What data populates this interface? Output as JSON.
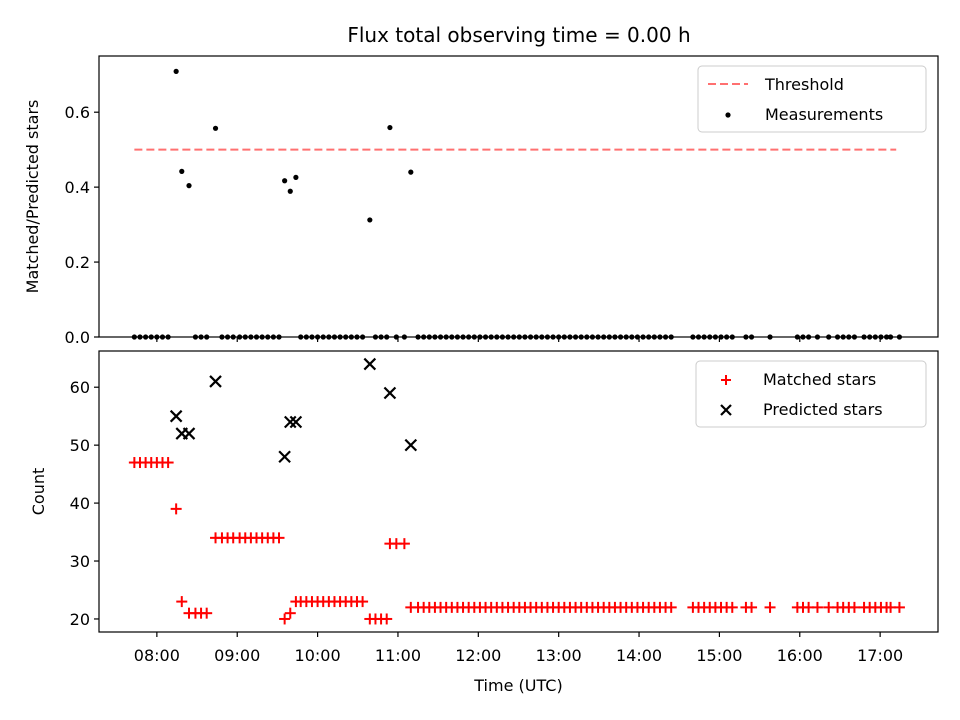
{
  "chart_data": [
    {
      "type": "scatter",
      "panel": "top",
      "title": "Flux total observing time = 0.00 h",
      "xlabel": "",
      "ylabel": "Matched/Predicted stars",
      "xlim": [
        7.28,
        17.72
      ],
      "ylim": [
        0.0,
        0.75
      ],
      "yticks": [
        0.0,
        0.2,
        0.4,
        0.6
      ],
      "ytick_labels": [
        "0.0",
        "0.2",
        "0.4",
        "0.6"
      ],
      "legend_position": "top-right",
      "threshold": {
        "name": "Threshold",
        "value": 0.5,
        "x_start": 7.72,
        "x_end": 17.2,
        "color": "#ff7070"
      },
      "measurements": {
        "name": "Measurements",
        "color": "#000000",
        "x": [
          7.72,
          7.79,
          7.86,
          7.93,
          8.0,
          8.07,
          8.14,
          8.24,
          8.31,
          8.4,
          8.48,
          8.55,
          8.62,
          8.73,
          8.81,
          8.88,
          8.95,
          9.03,
          9.1,
          9.17,
          9.24,
          9.31,
          9.38,
          9.45,
          9.52,
          9.59,
          9.66,
          9.73,
          9.79,
          9.86,
          9.93,
          10.0,
          10.07,
          10.14,
          10.21,
          10.28,
          10.35,
          10.42,
          10.49,
          10.56,
          10.65,
          10.72,
          10.79,
          10.86,
          10.9,
          10.98,
          11.08,
          11.16,
          11.25,
          11.32,
          11.39,
          11.46,
          11.53,
          11.6,
          11.67,
          11.74,
          11.81,
          11.88,
          11.95,
          12.02,
          12.09,
          12.16,
          12.23,
          12.3,
          12.37,
          12.44,
          12.51,
          12.58,
          12.65,
          12.72,
          12.79,
          12.86,
          12.93,
          13.0,
          13.07,
          13.14,
          13.21,
          13.28,
          13.35,
          13.42,
          13.49,
          13.56,
          13.63,
          13.7,
          13.77,
          13.84,
          13.91,
          13.98,
          14.05,
          14.12,
          14.19,
          14.26,
          14.33,
          14.4,
          14.67,
          14.74,
          14.81,
          14.88,
          14.95,
          15.02,
          15.09,
          15.16,
          15.33,
          15.4,
          15.63,
          15.97,
          16.04,
          16.11,
          16.22,
          16.36,
          16.47,
          16.54,
          16.61,
          16.68,
          16.8,
          16.87,
          16.94,
          17.01,
          17.08,
          17.13,
          17.24
        ],
        "y": [
          0,
          0,
          0,
          0,
          0,
          0,
          0,
          0.709,
          0.442,
          0.404,
          0,
          0,
          0,
          0.557,
          0,
          0,
          0,
          0,
          0,
          0,
          0,
          0,
          0,
          0,
          0,
          0.417,
          0.389,
          0.426,
          0,
          0,
          0,
          0,
          0,
          0,
          0,
          0,
          0,
          0,
          0,
          0,
          0.3125,
          0,
          0,
          0,
          0.559,
          0,
          0,
          0.44,
          0,
          0,
          0,
          0,
          0,
          0,
          0,
          0,
          0,
          0,
          0,
          0,
          0,
          0,
          0,
          0,
          0,
          0,
          0,
          0,
          0,
          0,
          0,
          0,
          0,
          0,
          0,
          0,
          0,
          0,
          0,
          0,
          0,
          0,
          0,
          0,
          0,
          0,
          0,
          0,
          0,
          0,
          0,
          0,
          0,
          0,
          0,
          0,
          0,
          0,
          0,
          0,
          0,
          0,
          0,
          0,
          0,
          0,
          0,
          0,
          0,
          0,
          0,
          0,
          0,
          0,
          0,
          0,
          0,
          0,
          0,
          0,
          0
        ]
      },
      "legend": [
        "Threshold",
        "Measurements"
      ]
    },
    {
      "type": "scatter",
      "panel": "bottom",
      "title": "",
      "xlabel": "Time (UTC)",
      "ylabel": "Count",
      "xlim": [
        7.28,
        17.72
      ],
      "ylim": [
        17.75,
        66.25
      ],
      "xticks": [
        8,
        9,
        10,
        11,
        12,
        13,
        14,
        15,
        16,
        17
      ],
      "xtick_labels": [
        "08:00",
        "09:00",
        "10:00",
        "11:00",
        "12:00",
        "13:00",
        "14:00",
        "15:00",
        "16:00",
        "17:00"
      ],
      "yticks": [
        20,
        30,
        40,
        50,
        60
      ],
      "ytick_labels": [
        "20",
        "30",
        "40",
        "50",
        "60"
      ],
      "legend_position": "top-right",
      "series": [
        {
          "name": "Matched stars",
          "marker": "plus",
          "color": "#ff0000",
          "points": [
            [
              7.72,
              47
            ],
            [
              7.79,
              47
            ],
            [
              7.86,
              47
            ],
            [
              7.93,
              47
            ],
            [
              8.0,
              47
            ],
            [
              8.07,
              47
            ],
            [
              8.14,
              47
            ],
            [
              8.24,
              39
            ],
            [
              8.31,
              23
            ],
            [
              8.4,
              21
            ],
            [
              8.48,
              21
            ],
            [
              8.55,
              21
            ],
            [
              8.62,
              21
            ],
            [
              8.73,
              34
            ],
            [
              8.81,
              34
            ],
            [
              8.88,
              34
            ],
            [
              8.95,
              34
            ],
            [
              9.03,
              34
            ],
            [
              9.1,
              34
            ],
            [
              9.17,
              34
            ],
            [
              9.24,
              34
            ],
            [
              9.31,
              34
            ],
            [
              9.38,
              34
            ],
            [
              9.45,
              34
            ],
            [
              9.52,
              34
            ],
            [
              9.59,
              20
            ],
            [
              9.66,
              21
            ],
            [
              9.73,
              23
            ],
            [
              9.79,
              23
            ],
            [
              9.86,
              23
            ],
            [
              9.93,
              23
            ],
            [
              10.0,
              23
            ],
            [
              10.07,
              23
            ],
            [
              10.14,
              23
            ],
            [
              10.21,
              23
            ],
            [
              10.28,
              23
            ],
            [
              10.35,
              23
            ],
            [
              10.42,
              23
            ],
            [
              10.49,
              23
            ],
            [
              10.56,
              23
            ],
            [
              10.65,
              20
            ],
            [
              10.72,
              20
            ],
            [
              10.79,
              20
            ],
            [
              10.86,
              20
            ],
            [
              10.9,
              33
            ],
            [
              10.98,
              33
            ],
            [
              11.08,
              33
            ],
            [
              11.16,
              22
            ],
            [
              11.25,
              22
            ],
            [
              11.32,
              22
            ],
            [
              11.39,
              22
            ],
            [
              11.46,
              22
            ],
            [
              11.53,
              22
            ],
            [
              11.6,
              22
            ],
            [
              11.67,
              22
            ],
            [
              11.74,
              22
            ],
            [
              11.81,
              22
            ],
            [
              11.88,
              22
            ],
            [
              11.95,
              22
            ],
            [
              12.02,
              22
            ],
            [
              12.09,
              22
            ],
            [
              12.16,
              22
            ],
            [
              12.23,
              22
            ],
            [
              12.3,
              22
            ],
            [
              12.37,
              22
            ],
            [
              12.44,
              22
            ],
            [
              12.51,
              22
            ],
            [
              12.58,
              22
            ],
            [
              12.65,
              22
            ],
            [
              12.72,
              22
            ],
            [
              12.79,
              22
            ],
            [
              12.86,
              22
            ],
            [
              12.93,
              22
            ],
            [
              13.0,
              22
            ],
            [
              13.07,
              22
            ],
            [
              13.14,
              22
            ],
            [
              13.21,
              22
            ],
            [
              13.28,
              22
            ],
            [
              13.35,
              22
            ],
            [
              13.42,
              22
            ],
            [
              13.49,
              22
            ],
            [
              13.56,
              22
            ],
            [
              13.63,
              22
            ],
            [
              13.7,
              22
            ],
            [
              13.77,
              22
            ],
            [
              13.84,
              22
            ],
            [
              13.91,
              22
            ],
            [
              13.98,
              22
            ],
            [
              14.05,
              22
            ],
            [
              14.12,
              22
            ],
            [
              14.19,
              22
            ],
            [
              14.26,
              22
            ],
            [
              14.33,
              22
            ],
            [
              14.4,
              22
            ],
            [
              14.67,
              22
            ],
            [
              14.74,
              22
            ],
            [
              14.81,
              22
            ],
            [
              14.88,
              22
            ],
            [
              14.95,
              22
            ],
            [
              15.02,
              22
            ],
            [
              15.09,
              22
            ],
            [
              15.16,
              22
            ],
            [
              15.33,
              22
            ],
            [
              15.4,
              22
            ],
            [
              15.63,
              22
            ],
            [
              15.97,
              22
            ],
            [
              16.04,
              22
            ],
            [
              16.11,
              22
            ],
            [
              16.22,
              22
            ],
            [
              16.36,
              22
            ],
            [
              16.47,
              22
            ],
            [
              16.54,
              22
            ],
            [
              16.61,
              22
            ],
            [
              16.68,
              22
            ],
            [
              16.8,
              22
            ],
            [
              16.87,
              22
            ],
            [
              16.94,
              22
            ],
            [
              17.01,
              22
            ],
            [
              17.08,
              22
            ],
            [
              17.13,
              22
            ],
            [
              17.24,
              22
            ]
          ]
        },
        {
          "name": "Predicted stars",
          "marker": "x",
          "color": "#000000",
          "points": [
            [
              8.24,
              55
            ],
            [
              8.31,
              52
            ],
            [
              8.4,
              52
            ],
            [
              8.73,
              61
            ],
            [
              9.59,
              48
            ],
            [
              9.66,
              54
            ],
            [
              9.73,
              54
            ],
            [
              10.65,
              64
            ],
            [
              10.9,
              59
            ],
            [
              11.16,
              50
            ]
          ]
        }
      ],
      "legend": [
        "Matched stars",
        "Predicted stars"
      ]
    }
  ]
}
